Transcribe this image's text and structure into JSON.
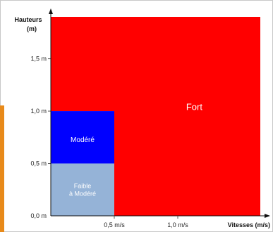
{
  "chart_data": {
    "type": "heatmap",
    "title": "",
    "ylabel_lines": [
      "Hauteurs",
      "(m)"
    ],
    "xlabel": "Vitesses (m/s)",
    "x_range": [
      0,
      1.65
    ],
    "y_range": [
      0,
      1.9
    ],
    "x_ticks": [
      {
        "value": 0.5,
        "label": "0,5 m/s"
      },
      {
        "value": 1.0,
        "label": "1,0 m/s"
      }
    ],
    "y_ticks": [
      {
        "value": 0.0,
        "label": "0,0 m"
      },
      {
        "value": 0.5,
        "label": "0,5 m"
      },
      {
        "value": 1.0,
        "label": "1,0 m"
      },
      {
        "value": 1.5,
        "label": "1,5 m"
      }
    ],
    "zones": [
      {
        "label_lines": [
          "Fort"
        ],
        "color": "#ff0000",
        "x": [
          0.5,
          1.65
        ],
        "y": [
          0,
          1.9
        ],
        "extends_above_y": 1.0,
        "label_at": [
          1.13,
          1.04
        ],
        "font_size": 13
      },
      {
        "label_lines": [
          "Fort"
        ],
        "color": "#ff0000",
        "x": [
          0,
          0.5
        ],
        "y": [
          1.0,
          1.9
        ],
        "hidden_label": true
      },
      {
        "label_lines": [
          "Modéré"
        ],
        "color": "#0000ff",
        "x": [
          0,
          0.5
        ],
        "y": [
          0.5,
          1.0
        ],
        "label_at": [
          0.25,
          0.73
        ],
        "font_size": 10
      },
      {
        "label_lines": [
          "Faible",
          "à Modéré"
        ],
        "color": "#95b3d7",
        "x": [
          0,
          0.5
        ],
        "y": [
          0,
          0.5
        ],
        "label_at": [
          0.25,
          0.25
        ],
        "font_size": 9
      }
    ]
  }
}
